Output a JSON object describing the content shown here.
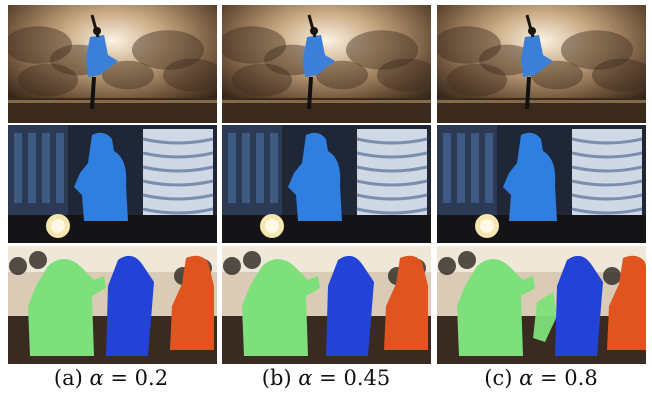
{
  "figure": {
    "columns": [
      {
        "label": "(a)",
        "symbol": "α",
        "relation": "=",
        "value": "0.2"
      },
      {
        "label": "(b)",
        "symbol": "α",
        "relation": "=",
        "value": "0.45"
      },
      {
        "label": "(c)",
        "symbol": "α",
        "relation": "=",
        "value": "0.8"
      }
    ],
    "rows": [
      {
        "scene": "dancer-clouds",
        "mask_colors": [
          "#3b7fd9"
        ]
      },
      {
        "scene": "person-window-lamp",
        "mask_colors": [
          "#2f7fe0"
        ]
      },
      {
        "scene": "three-people-room",
        "mask_colors": [
          "#7ee07a",
          "#2243d6",
          "#e0551f"
        ]
      }
    ]
  }
}
